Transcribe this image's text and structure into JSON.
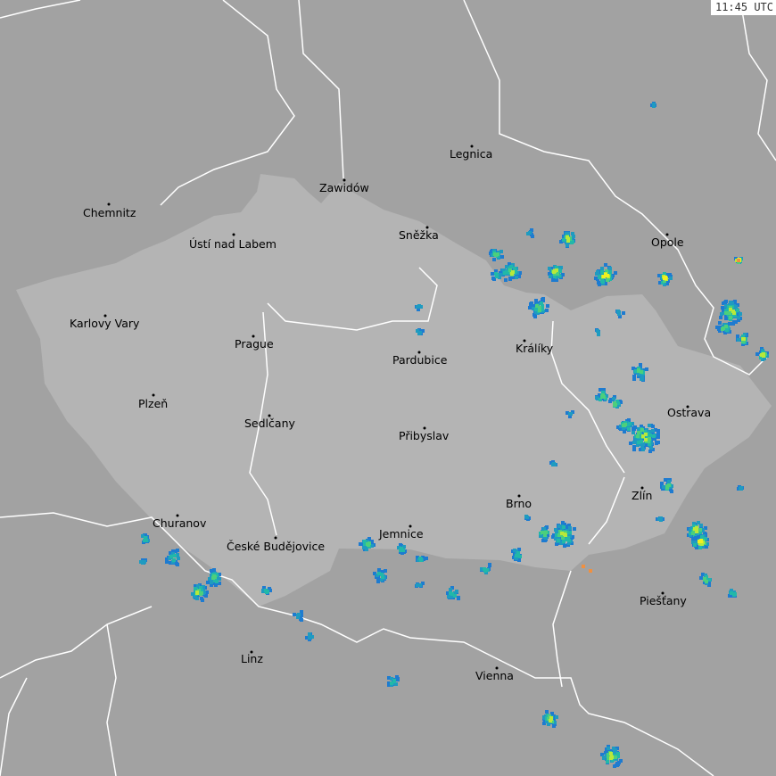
{
  "timestamp": "11:45 UTC",
  "colors": {
    "background": "#a2a2a2",
    "czech_republic": "#b4b4b4",
    "borders": "#ffffff",
    "region_lines": "#808080",
    "radar_scale": [
      "#1e7bd0",
      "#1f9bc0",
      "#22b8a8",
      "#4ccf7c",
      "#b8e83a",
      "#f0f020",
      "#f09040"
    ]
  },
  "cities": [
    "Legnica",
    "Zawidów",
    "Chemnitz",
    "Ústí nad Labem",
    "Sněžka",
    "Opole",
    "Karlovy Vary",
    "Prague",
    "Králíky",
    "Pardubice",
    "Plzeň",
    "Ostrava",
    "Sedlčany",
    "Přibyslav",
    "Brno",
    "Zlín",
    "Churanov",
    "Jemnice",
    "České Budějovice",
    "Piešťany",
    "Linz",
    "Vienna"
  ]
}
